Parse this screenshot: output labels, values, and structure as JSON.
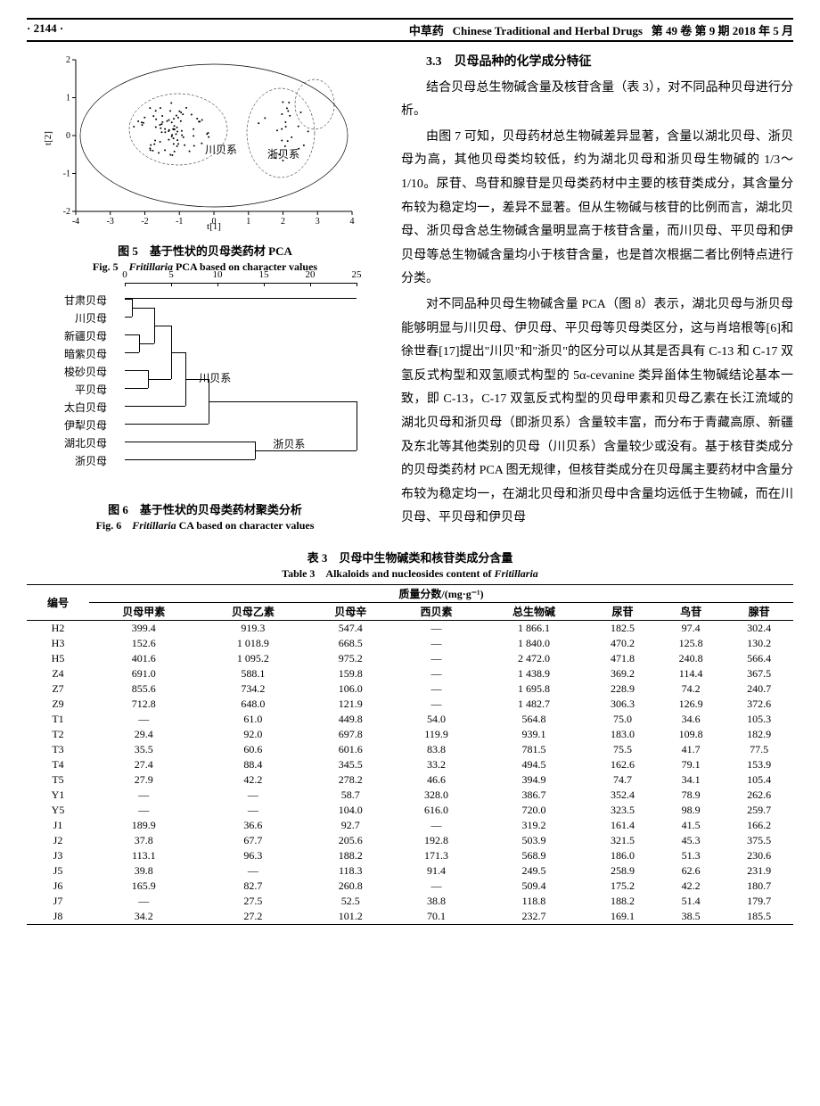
{
  "header": {
    "page_no": "· 2144 ·",
    "journal_zh": "中草药",
    "journal_en": "Chinese Traditional and Herbal Drugs",
    "issue": "第 49 卷 第 9 期 2018 年 5 月"
  },
  "fig5": {
    "caption_zh": "图 5　基于性状的贝母类药材 PCA",
    "caption_en_pre": "Fig. 5　",
    "caption_en_it": "Fritillaria",
    "caption_en_post": " PCA based on character values",
    "xlabel": "t[1]",
    "ylabel": "t[2]",
    "xlim": [
      -4,
      4
    ],
    "ylim": [
      -2,
      2
    ],
    "xticks": [
      -4,
      -3,
      -2,
      -1,
      0,
      1,
      2,
      3,
      4
    ],
    "yticks": [
      -2,
      -1,
      0,
      1,
      2
    ],
    "group_a": "川贝系",
    "group_b": "浙贝系",
    "axis_fontsize": 11
  },
  "fig6": {
    "caption_zh": "图 6　基于性状的贝母类药材聚类分析",
    "caption_en_pre": "Fig. 6　",
    "caption_en_it": "Fritillaria",
    "caption_en_post": " CA based on character values",
    "scale_ticks": [
      0,
      5,
      10,
      15,
      20,
      25
    ],
    "labels": [
      "甘肃贝母",
      "川贝母",
      "新疆贝母",
      "暗紫贝母",
      "梭砂贝母",
      "平贝母",
      "太白贝母",
      "伊犁贝母",
      "湖北贝母",
      "浙贝母"
    ],
    "group_a": "川贝系",
    "group_b": "浙贝系",
    "merge_heights": {
      "gansu_chuan": 0.8,
      "xinjiang_anzi": 1.5,
      "suosha_ping": 2.5,
      "gc_xa": 3.2,
      "gcxa_sp": 5.0,
      "taibai": 6.5,
      "yili": 9.0,
      "hubei_zhe": 14.0,
      "all": 25.0
    },
    "line_color": "#000000"
  },
  "right": {
    "sec_no": "3.3",
    "sec_title": "贝母品种的化学成分特征",
    "p1": "结合贝母总生物碱含量及核苷含量（表 3），对不同品种贝母进行分析。",
    "p2": "由图 7 可知，贝母药材总生物碱差异显著，含量以湖北贝母、浙贝母为高，其他贝母类均较低，约为湖北贝母和浙贝母生物碱的 1/3～1/10。尿苷、鸟苷和腺苷是贝母类药材中主要的核苷类成分，其含量分布较为稳定均一，差异不显著。但从生物碱与核苷的比例而言，湖北贝母、浙贝母含总生物碱含量明显高于核苷含量，而川贝母、平贝母和伊贝母等总生物碱含量均小于核苷含量，也是首次根据二者比例特点进行分类。",
    "p3": "对不同品种贝母生物碱含量 PCA（图 8）表示，湖北贝母与浙贝母能够明显与川贝母、伊贝母、平贝母等贝母类区分，这与肖培根等[6]和徐世春[17]提出\"川贝\"和\"浙贝\"的区分可以从其是否具有 C-13 和 C-17 双氢反式构型和双氢顺式构型的 5α-cevanine 类异甾体生物碱结论基本一致，即 C-13，C-17 双氢反式构型的贝母甲素和贝母乙素在长江流域的湖北贝母和浙贝母（即浙贝系）含量较丰富，而分布于青藏高原、新疆及东北等其他类别的贝母（川贝系）含量较少或没有。基于核苷类成分的贝母类药材 PCA 图无规律，但核苷类成分在贝母属主要药材中含量分布较为稳定均一，在湖北贝母和浙贝母中含量均远低于生物碱，而在川贝母、平贝母和伊贝母"
  },
  "table3": {
    "caption_zh": "表 3　贝母中生物碱类和核苷类成分含量",
    "caption_en_pre": "Table 3　Alkaloids and nucleosides content of ",
    "caption_en_it": "Fritillaria",
    "group_header": "质量分数/(mg·g⁻¹)",
    "col0": "编号",
    "columns": [
      "贝母甲素",
      "贝母乙素",
      "贝母辛",
      "西贝素",
      "总生物碱",
      "尿苷",
      "鸟苷",
      "腺苷"
    ],
    "rows": [
      [
        "H2",
        "399.4",
        "919.3",
        "547.4",
        "—",
        "1 866.1",
        "182.5",
        "97.4",
        "302.4"
      ],
      [
        "H3",
        "152.6",
        "1 018.9",
        "668.5",
        "—",
        "1 840.0",
        "470.2",
        "125.8",
        "130.2"
      ],
      [
        "H5",
        "401.6",
        "1 095.2",
        "975.2",
        "—",
        "2 472.0",
        "471.8",
        "240.8",
        "566.4"
      ],
      [
        "Z4",
        "691.0",
        "588.1",
        "159.8",
        "—",
        "1 438.9",
        "369.2",
        "114.4",
        "367.5"
      ],
      [
        "Z7",
        "855.6",
        "734.2",
        "106.0",
        "—",
        "1 695.8",
        "228.9",
        "74.2",
        "240.7"
      ],
      [
        "Z9",
        "712.8",
        "648.0",
        "121.9",
        "—",
        "1 482.7",
        "306.3",
        "126.9",
        "372.6"
      ],
      [
        "T1",
        "—",
        "61.0",
        "449.8",
        "54.0",
        "564.8",
        "75.0",
        "34.6",
        "105.3"
      ],
      [
        "T2",
        "29.4",
        "92.0",
        "697.8",
        "119.9",
        "939.1",
        "183.0",
        "109.8",
        "182.9"
      ],
      [
        "T3",
        "35.5",
        "60.6",
        "601.6",
        "83.8",
        "781.5",
        "75.5",
        "41.7",
        "77.5"
      ],
      [
        "T4",
        "27.4",
        "88.4",
        "345.5",
        "33.2",
        "494.5",
        "162.6",
        "79.1",
        "153.9"
      ],
      [
        "T5",
        "27.9",
        "42.2",
        "278.2",
        "46.6",
        "394.9",
        "74.7",
        "34.1",
        "105.4"
      ],
      [
        "Y1",
        "—",
        "—",
        "58.7",
        "328.0",
        "386.7",
        "352.4",
        "78.9",
        "262.6"
      ],
      [
        "Y5",
        "—",
        "—",
        "104.0",
        "616.0",
        "720.0",
        "323.5",
        "98.9",
        "259.7"
      ],
      [
        "J1",
        "189.9",
        "36.6",
        "92.7",
        "—",
        "319.2",
        "161.4",
        "41.5",
        "166.2"
      ],
      [
        "J2",
        "37.8",
        "67.7",
        "205.6",
        "192.8",
        "503.9",
        "321.5",
        "45.3",
        "375.5"
      ],
      [
        "J3",
        "113.1",
        "96.3",
        "188.2",
        "171.3",
        "568.9",
        "186.0",
        "51.3",
        "230.6"
      ],
      [
        "J5",
        "39.8",
        "—",
        "118.3",
        "91.4",
        "249.5",
        "258.9",
        "62.6",
        "231.9"
      ],
      [
        "J6",
        "165.9",
        "82.7",
        "260.8",
        "—",
        "509.4",
        "175.2",
        "42.2",
        "180.7"
      ],
      [
        "J7",
        "—",
        "27.5",
        "52.5",
        "38.8",
        "118.8",
        "188.2",
        "51.4",
        "179.7"
      ],
      [
        "J8",
        "34.2",
        "27.2",
        "101.2",
        "70.1",
        "232.7",
        "169.1",
        "38.5",
        "185.5"
      ]
    ]
  }
}
